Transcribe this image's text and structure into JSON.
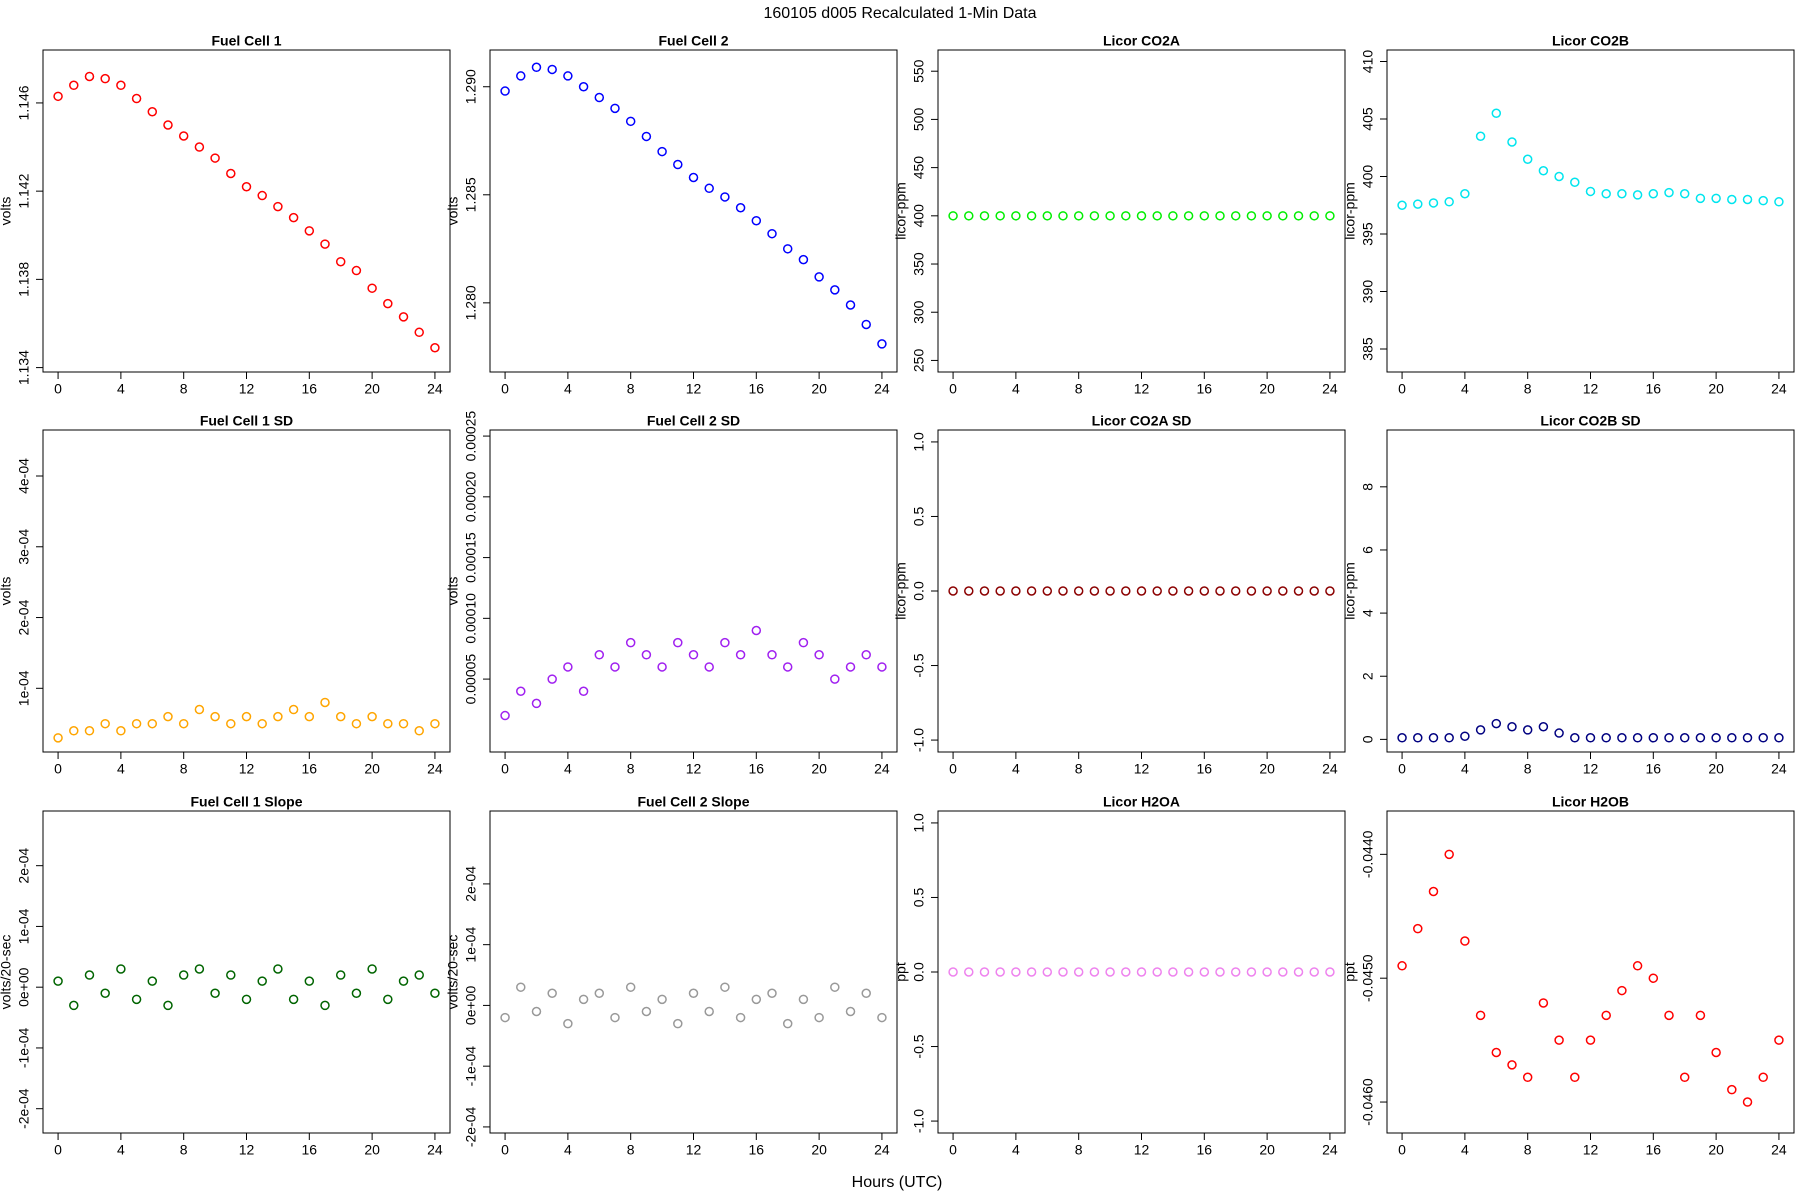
{
  "title": "160105   d005   Recalculated 1-Min Data",
  "xlabel": "Hours (UTC)",
  "chart_data": [
    {
      "type": "scatter",
      "title": "Fuel Cell 1",
      "ylabel": "volts",
      "color": "#ff0000",
      "x": [
        0,
        1,
        2,
        3,
        4,
        5,
        6,
        7,
        8,
        9,
        10,
        11,
        12,
        13,
        14,
        15,
        16,
        17,
        18,
        19,
        20,
        21,
        22,
        23,
        24
      ],
      "values": [
        1.1463,
        1.1468,
        1.1472,
        1.1471,
        1.1468,
        1.1462,
        1.1456,
        1.145,
        1.1445,
        1.144,
        1.1435,
        1.1428,
        1.1422,
        1.1418,
        1.1413,
        1.1408,
        1.1402,
        1.1396,
        1.1388,
        1.1384,
        1.1376,
        1.1369,
        1.1363,
        1.1356,
        1.1349
      ],
      "xlim": [
        -0.96,
        24.96
      ],
      "xticks": [
        0,
        4,
        8,
        12,
        16,
        20,
        24
      ],
      "ylim": [
        1.1338,
        1.1484
      ],
      "yticks": [
        1.134,
        1.138,
        1.142,
        1.146
      ]
    },
    {
      "type": "scatter",
      "title": "Fuel Cell 2",
      "ylabel": "volts",
      "color": "#0000ff",
      "x": [
        0,
        1,
        2,
        3,
        4,
        5,
        6,
        7,
        8,
        9,
        10,
        11,
        12,
        13,
        14,
        15,
        16,
        17,
        18,
        19,
        20,
        21,
        22,
        23,
        24
      ],
      "values": [
        1.2898,
        1.2905,
        1.2909,
        1.2908,
        1.2905,
        1.29,
        1.2895,
        1.289,
        1.2884,
        1.2877,
        1.287,
        1.2864,
        1.2858,
        1.2853,
        1.2849,
        1.2844,
        1.2838,
        1.2832,
        1.2825,
        1.282,
        1.2812,
        1.2806,
        1.2799,
        1.279,
        1.2781
      ],
      "xlim": [
        -0.96,
        24.96
      ],
      "xticks": [
        0,
        4,
        8,
        12,
        16,
        20,
        24
      ],
      "ylim": [
        1.2768,
        1.2917
      ],
      "yticks": [
        {
          "value": 1.28,
          "label": "1.280"
        },
        1.285,
        {
          "value": 1.29,
          "label": "1.290"
        }
      ]
    },
    {
      "type": "scatter",
      "title": "Licor CO2A",
      "ylabel": "licor-ppm",
      "color": "#00ee00",
      "x": [
        0,
        1,
        2,
        3,
        4,
        5,
        6,
        7,
        8,
        9,
        10,
        11,
        12,
        13,
        14,
        15,
        16,
        17,
        18,
        19,
        20,
        21,
        22,
        23,
        24
      ],
      "values": [
        400,
        400,
        400,
        400,
        400,
        400,
        400,
        400,
        400,
        400,
        400,
        400,
        400,
        400,
        400,
        400,
        400,
        400,
        400,
        400,
        400,
        400,
        400,
        400,
        400
      ],
      "xlim": [
        -0.96,
        24.96
      ],
      "xticks": [
        0,
        4,
        8,
        12,
        16,
        20,
        24
      ],
      "ylim": [
        238,
        572
      ],
      "yticks": [
        250,
        300,
        350,
        400,
        450,
        500,
        550
      ]
    },
    {
      "type": "scatter",
      "title": "Licor CO2B",
      "ylabel": "licor-ppm",
      "color": "#00e5ee",
      "x": [
        0,
        1,
        2,
        3,
        4,
        5,
        6,
        7,
        8,
        9,
        10,
        11,
        12,
        13,
        14,
        15,
        16,
        17,
        18,
        19,
        20,
        21,
        22,
        23,
        24
      ],
      "values": [
        397.5,
        397.6,
        397.7,
        397.8,
        398.5,
        403.5,
        405.5,
        403,
        401.5,
        400.5,
        400,
        399.5,
        398.7,
        398.5,
        398.5,
        398.4,
        398.5,
        398.6,
        398.5,
        398.1,
        398.1,
        398,
        398,
        397.9,
        397.8
      ],
      "xlim": [
        -0.96,
        24.96
      ],
      "xticks": [
        0,
        4,
        8,
        12,
        16,
        20,
        24
      ],
      "ylim": [
        383,
        411
      ],
      "yticks": [
        385,
        390,
        395,
        400,
        405,
        410
      ]
    },
    {
      "type": "scatter",
      "title": "Fuel Cell 1 SD",
      "ylabel": "volts",
      "color": "#ffa500",
      "x": [
        0,
        1,
        2,
        3,
        4,
        5,
        6,
        7,
        8,
        9,
        10,
        11,
        12,
        13,
        14,
        15,
        16,
        17,
        18,
        19,
        20,
        21,
        22,
        23,
        24
      ],
      "values": [
        3e-05,
        4e-05,
        4e-05,
        5e-05,
        4e-05,
        5e-05,
        5e-05,
        6e-05,
        5e-05,
        7e-05,
        6e-05,
        5e-05,
        6e-05,
        5e-05,
        6e-05,
        7e-05,
        6e-05,
        8e-05,
        6e-05,
        5e-05,
        6e-05,
        5e-05,
        5e-05,
        4e-05,
        5e-05
      ],
      "xlim": [
        -0.96,
        24.96
      ],
      "xticks": [
        0,
        4,
        8,
        12,
        16,
        20,
        24
      ],
      "ylim": [
        1e-05,
        0.000465
      ],
      "yticks": [
        {
          "value": 0.0001,
          "label": "1e-04"
        },
        {
          "value": 0.0002,
          "label": "2e-04"
        },
        {
          "value": 0.0003,
          "label": "3e-04"
        },
        {
          "value": 0.0004,
          "label": "4e-04"
        }
      ]
    },
    {
      "type": "scatter",
      "title": "Fuel Cell 2 SD",
      "ylabel": "volts",
      "color": "#a020f0",
      "x": [
        0,
        1,
        2,
        3,
        4,
        5,
        6,
        7,
        8,
        9,
        10,
        11,
        12,
        13,
        14,
        15,
        16,
        17,
        18,
        19,
        20,
        21,
        22,
        23,
        24
      ],
      "values": [
        2e-05,
        4e-05,
        3e-05,
        5e-05,
        6e-05,
        4e-05,
        7e-05,
        6e-05,
        8e-05,
        7e-05,
        6e-05,
        8e-05,
        7e-05,
        6e-05,
        8e-05,
        7e-05,
        9e-05,
        7e-05,
        6e-05,
        8e-05,
        7e-05,
        5e-05,
        6e-05,
        7e-05,
        6e-05
      ],
      "xlim": [
        -0.96,
        24.96
      ],
      "xticks": [
        0,
        4,
        8,
        12,
        16,
        20,
        24
      ],
      "ylim": [
        -1e-05,
        0.000255
      ],
      "yticks": [
        {
          "value": 5e-05,
          "label": "0.00005"
        },
        {
          "value": 0.0001,
          "label": "0.00010"
        },
        {
          "value": 0.00015,
          "label": "0.00015"
        },
        {
          "value": 0.0002,
          "label": "0.00020"
        },
        {
          "value": 0.00025,
          "label": "0.00025"
        }
      ]
    },
    {
      "type": "scatter",
      "title": "Licor CO2A SD",
      "ylabel": "licor-ppm",
      "color": "#8b0000",
      "x": [
        0,
        1,
        2,
        3,
        4,
        5,
        6,
        7,
        8,
        9,
        10,
        11,
        12,
        13,
        14,
        15,
        16,
        17,
        18,
        19,
        20,
        21,
        22,
        23,
        24
      ],
      "values": [
        0,
        0,
        0,
        0,
        0,
        0,
        0,
        0,
        0,
        0,
        0,
        0,
        0,
        0,
        0,
        0,
        0,
        0,
        0,
        0,
        0,
        0,
        0,
        0,
        0
      ],
      "xlim": [
        -0.96,
        24.96
      ],
      "xticks": [
        0,
        4,
        8,
        12,
        16,
        20,
        24
      ],
      "ylim": [
        -1.08,
        1.08
      ],
      "yticks": [
        {
          "value": -1,
          "label": "-1.0"
        },
        -0.5,
        {
          "value": 0,
          "label": "0.0"
        },
        0.5,
        {
          "value": 1,
          "label": "1.0"
        }
      ]
    },
    {
      "type": "scatter",
      "title": "Licor CO2B SD",
      "ylabel": "licor-ppm",
      "color": "#000080",
      "x": [
        0,
        1,
        2,
        3,
        4,
        5,
        6,
        7,
        8,
        9,
        10,
        11,
        12,
        13,
        14,
        15,
        16,
        17,
        18,
        19,
        20,
        21,
        22,
        23,
        24
      ],
      "values": [
        0.05,
        0.05,
        0.05,
        0.05,
        0.1,
        0.3,
        0.5,
        0.4,
        0.3,
        0.4,
        0.2,
        0.05,
        0.05,
        0.05,
        0.05,
        0.05,
        0.05,
        0.05,
        0.05,
        0.05,
        0.05,
        0.05,
        0.05,
        0.05,
        0.05
      ],
      "xlim": [
        -0.96,
        24.96
      ],
      "xticks": [
        0,
        4,
        8,
        12,
        16,
        20,
        24
      ],
      "ylim": [
        -0.4,
        9.8
      ],
      "yticks": [
        0,
        2,
        4,
        6,
        8
      ]
    },
    {
      "type": "scatter",
      "title": "Fuel Cell 1 Slope",
      "ylabel": "volts/20-sec",
      "color": "#006400",
      "x": [
        0,
        1,
        2,
        3,
        4,
        5,
        6,
        7,
        8,
        9,
        10,
        11,
        12,
        13,
        14,
        15,
        16,
        17,
        18,
        19,
        20,
        21,
        22,
        23,
        24
      ],
      "values": [
        1e-05,
        -3e-05,
        2e-05,
        -1e-05,
        3e-05,
        -2e-05,
        1e-05,
        -3e-05,
        2e-05,
        3e-05,
        -1e-05,
        2e-05,
        -2e-05,
        1e-05,
        3e-05,
        -2e-05,
        1e-05,
        -3e-05,
        2e-05,
        -1e-05,
        3e-05,
        -2e-05,
        1e-05,
        2e-05,
        -1e-05
      ],
      "xlim": [
        -0.96,
        24.96
      ],
      "xticks": [
        0,
        4,
        8,
        12,
        16,
        20,
        24
      ],
      "ylim": [
        -0.00024,
        0.00029
      ],
      "yticks": [
        {
          "value": -0.0002,
          "label": "-2e-04"
        },
        {
          "value": -0.0001,
          "label": "-1e-04"
        },
        {
          "value": 0,
          "label": "0e+00"
        },
        {
          "value": 0.0001,
          "label": "1e-04"
        },
        {
          "value": 0.0002,
          "label": "2e-04"
        }
      ]
    },
    {
      "type": "scatter",
      "title": "Fuel Cell 2 Slope",
      "ylabel": "volts/20-sec",
      "color": "#999999",
      "x": [
        0,
        1,
        2,
        3,
        4,
        5,
        6,
        7,
        8,
        9,
        10,
        11,
        12,
        13,
        14,
        15,
        16,
        17,
        18,
        19,
        20,
        21,
        22,
        23,
        24
      ],
      "values": [
        -2e-05,
        3e-05,
        -1e-05,
        2e-05,
        -3e-05,
        1e-05,
        2e-05,
        -2e-05,
        3e-05,
        -1e-05,
        1e-05,
        -3e-05,
        2e-05,
        -1e-05,
        3e-05,
        -2e-05,
        1e-05,
        2e-05,
        -3e-05,
        1e-05,
        -2e-05,
        3e-05,
        -1e-05,
        2e-05,
        -2e-05
      ],
      "xlim": [
        -0.96,
        24.96
      ],
      "xticks": [
        0,
        4,
        8,
        12,
        16,
        20,
        24
      ],
      "ylim": [
        -0.00021,
        0.00032
      ],
      "yticks": [
        {
          "value": -0.0002,
          "label": "-2e-04"
        },
        {
          "value": -0.0001,
          "label": "-1e-04"
        },
        {
          "value": 0,
          "label": "0e+00"
        },
        {
          "value": 0.0001,
          "label": "1e-04"
        },
        {
          "value": 0.0002,
          "label": "2e-04"
        }
      ]
    },
    {
      "type": "scatter",
      "title": "Licor H2OA",
      "ylabel": "ppt",
      "color": "#ee82ee",
      "x": [
        0,
        1,
        2,
        3,
        4,
        5,
        6,
        7,
        8,
        9,
        10,
        11,
        12,
        13,
        14,
        15,
        16,
        17,
        18,
        19,
        20,
        21,
        22,
        23,
        24
      ],
      "values": [
        0,
        0,
        0,
        0,
        0,
        0,
        0,
        0,
        0,
        0,
        0,
        0,
        0,
        0,
        0,
        0,
        0,
        0,
        0,
        0,
        0,
        0,
        0,
        0,
        0
      ],
      "xlim": [
        -0.96,
        24.96
      ],
      "xticks": [
        0,
        4,
        8,
        12,
        16,
        20,
        24
      ],
      "ylim": [
        -1.08,
        1.08
      ],
      "yticks": [
        {
          "value": -1,
          "label": "-1.0"
        },
        -0.5,
        {
          "value": 0,
          "label": "0.0"
        },
        0.5,
        {
          "value": 1,
          "label": "1.0"
        }
      ]
    },
    {
      "type": "scatter",
      "title": "Licor H2OB",
      "ylabel": "ppt",
      "color": "#ff0000",
      "x": [
        0,
        1,
        2,
        3,
        4,
        5,
        6,
        7,
        8,
        9,
        10,
        11,
        12,
        13,
        14,
        15,
        16,
        17,
        18,
        19,
        20,
        21,
        22,
        23,
        24
      ],
      "values": [
        -0.0449,
        -0.0446,
        -0.0443,
        -0.044,
        -0.0447,
        -0.0453,
        -0.0456,
        -0.0457,
        -0.0458,
        -0.0452,
        -0.0455,
        -0.0458,
        -0.0455,
        -0.0453,
        -0.0451,
        -0.0449,
        -0.045,
        -0.0453,
        -0.0458,
        -0.0453,
        -0.0456,
        -0.0459,
        -0.046,
        -0.0458,
        -0.0455
      ],
      "xlim": [
        -0.96,
        24.96
      ],
      "xticks": [
        0,
        4,
        8,
        12,
        16,
        20,
        24
      ],
      "ylim": [
        -0.04625,
        -0.04365
      ],
      "yticks": [
        {
          "value": -0.046,
          "label": "-0.0460"
        },
        {
          "value": -0.045,
          "label": "-0.0450"
        },
        {
          "value": -0.044,
          "label": "-0.0440"
        }
      ]
    }
  ]
}
